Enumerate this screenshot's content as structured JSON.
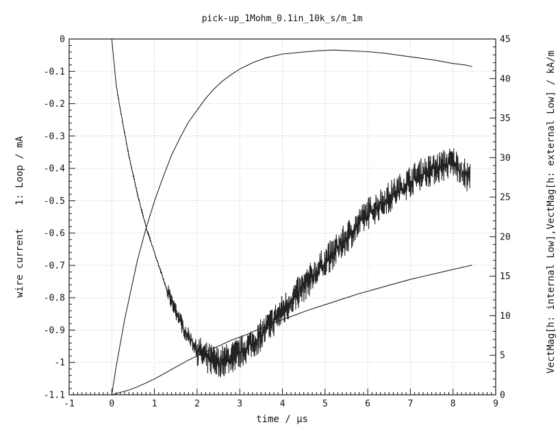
{
  "chart_data": {
    "type": "line",
    "title": "pick-up_1Mohm_0.1in_10k_s/m_1m",
    "xlabel": "time / µs",
    "ylabel_left": "wire current    1: Loop / mA",
    "ylabel_right": "VectMag[h: internal Low],VectMag[h: external Low] / kA/m",
    "xlim": [
      -1,
      9
    ],
    "ylim_left": [
      -1.1,
      0
    ],
    "ylim_right": [
      0,
      45
    ],
    "x_ticks": [
      "-1",
      "0",
      "1",
      "2",
      "3",
      "4",
      "5",
      "6",
      "7",
      "8",
      "9"
    ],
    "y_ticks_left": [
      "0",
      "-0.1",
      "-0.2",
      "-0.3",
      "-0.4",
      "-0.5",
      "-0.6",
      "-0.7",
      "-0.8",
      "-0.9",
      "-1",
      "-1.1"
    ],
    "y_ticks_right": [
      "45",
      "40",
      "35",
      "30",
      "25",
      "20",
      "15",
      "10",
      "5",
      "0"
    ],
    "grid": true,
    "series": [
      {
        "axis": "left",
        "noisy": true,
        "x": [
          0.0,
          0.1,
          0.2,
          0.3,
          0.4,
          0.5,
          0.6,
          0.7,
          0.8,
          0.9,
          1.0,
          1.1,
          1.2,
          1.3,
          1.4,
          1.5,
          1.6,
          1.7,
          1.8,
          1.9,
          2.0,
          2.1,
          2.2,
          2.3,
          2.4,
          2.5,
          2.6,
          2.8,
          3.0,
          3.2,
          3.4,
          3.6,
          3.8,
          4.0,
          4.2,
          4.4,
          4.6,
          4.8,
          5.0,
          5.2,
          5.4,
          5.6,
          5.8,
          6.0,
          6.2,
          6.4,
          6.6,
          6.8,
          7.0,
          7.2,
          7.4,
          7.6,
          7.8,
          8.0,
          8.2,
          8.4
        ],
        "y": [
          0.0,
          -0.14,
          -0.22,
          -0.29,
          -0.36,
          -0.42,
          -0.48,
          -0.53,
          -0.58,
          -0.62,
          -0.66,
          -0.7,
          -0.74,
          -0.78,
          -0.81,
          -0.84,
          -0.87,
          -0.9,
          -0.92,
          -0.94,
          -0.96,
          -0.975,
          -0.985,
          -0.99,
          -0.995,
          -1.0,
          -0.995,
          -0.985,
          -0.97,
          -0.95,
          -0.93,
          -0.9,
          -0.87,
          -0.84,
          -0.81,
          -0.78,
          -0.75,
          -0.72,
          -0.69,
          -0.66,
          -0.63,
          -0.6,
          -0.57,
          -0.54,
          -0.52,
          -0.5,
          -0.48,
          -0.46,
          -0.44,
          -0.42,
          -0.41,
          -0.4,
          -0.39,
          -0.38,
          -0.41,
          -0.43
        ]
      },
      {
        "axis": "right",
        "noisy": false,
        "x": [
          0.0,
          0.1,
          0.2,
          0.3,
          0.4,
          0.5,
          0.6,
          0.7,
          0.8,
          1.0,
          1.2,
          1.4,
          1.6,
          1.8,
          2.0,
          2.2,
          2.4,
          2.6,
          2.8,
          3.0,
          3.3,
          3.6,
          4.0,
          4.4,
          4.8,
          5.2,
          5.6,
          6.0,
          6.4,
          6.8,
          7.2,
          7.6,
          8.0,
          8.3,
          8.45
        ],
        "y": [
          0.0,
          3.5,
          6.5,
          9.5,
          12.0,
          14.5,
          17.0,
          19.0,
          21.0,
          24.5,
          27.5,
          30.3,
          32.5,
          34.5,
          36.0,
          37.5,
          38.7,
          39.7,
          40.5,
          41.2,
          42.0,
          42.6,
          43.1,
          43.3,
          43.5,
          43.6,
          43.5,
          43.4,
          43.2,
          42.9,
          42.6,
          42.3,
          41.9,
          41.7,
          41.5
        ]
      },
      {
        "axis": "right",
        "noisy": false,
        "x": [
          0.0,
          0.2,
          0.4,
          0.6,
          0.8,
          1.0,
          1.2,
          1.4,
          1.6,
          1.8,
          2.0,
          2.2,
          2.4,
          2.6,
          2.8,
          3.0,
          3.2,
          3.4,
          3.6,
          3.8,
          4.0,
          4.3,
          4.6,
          5.0,
          5.4,
          5.8,
          6.2,
          6.6,
          7.0,
          7.4,
          7.8,
          8.2,
          8.45
        ],
        "y": [
          0.0,
          0.3,
          0.6,
          1.0,
          1.5,
          2.0,
          2.6,
          3.2,
          3.8,
          4.4,
          4.9,
          5.4,
          5.9,
          6.4,
          6.9,
          7.3,
          7.7,
          8.2,
          8.6,
          9.1,
          9.5,
          10.1,
          10.7,
          11.4,
          12.1,
          12.8,
          13.4,
          14.0,
          14.6,
          15.1,
          15.6,
          16.1,
          16.4
        ]
      }
    ]
  }
}
